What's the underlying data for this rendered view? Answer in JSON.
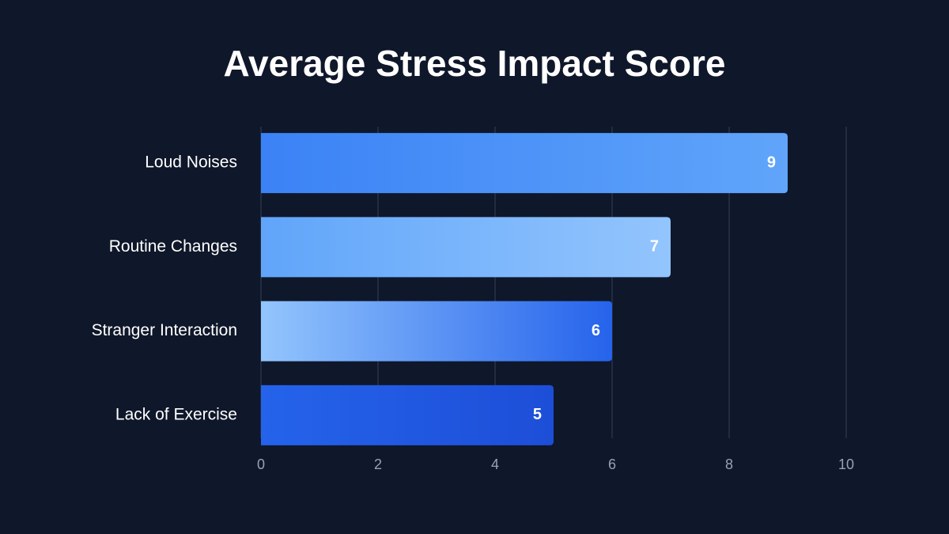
{
  "chart_data": {
    "type": "bar",
    "orientation": "horizontal",
    "title": "Average Stress Impact Score",
    "categories": [
      "Loud Noises",
      "Routine Changes",
      "Stranger Interaction",
      "Lack of Exercise"
    ],
    "values": [
      9,
      7,
      6,
      5
    ],
    "colors": [
      [
        "#3b82f6",
        "#60a5fa"
      ],
      [
        "#60a5fa",
        "#93c5fd"
      ],
      [
        "#93c5fd",
        "#2563eb"
      ],
      [
        "#2563eb",
        "#1d4ed8"
      ]
    ],
    "xlim": [
      0,
      10
    ],
    "xticks": [
      0,
      2,
      4,
      6,
      8,
      10
    ],
    "grid": true
  }
}
